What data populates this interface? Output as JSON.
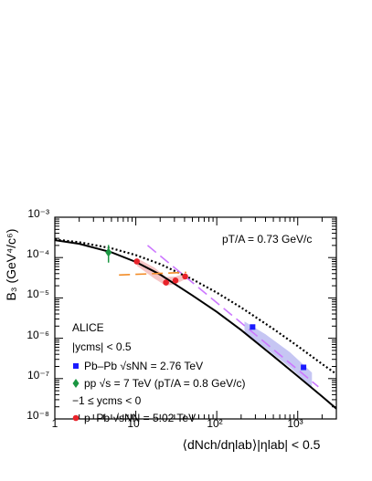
{
  "chart_data": {
    "type": "scatter",
    "xscale": "log",
    "yscale": "log",
    "xlim": [
      1,
      3000
    ],
    "ylim": [
      1e-08,
      0.001
    ],
    "x_tick_labels": [
      "1",
      "10",
      "10²",
      "10³"
    ],
    "y_tick_labels": [
      "10⁻⁸",
      "10⁻⁷",
      "10⁻⁶",
      "10⁻⁵",
      "10⁻⁴",
      "10⁻³"
    ],
    "ylabel": "B₃ (GeV⁴/c⁶)",
    "xlabel": "⟨dNch/dηlab⟩|ηlab| < 0.5",
    "annotation": "pT/A = 0.73 GeV/c",
    "legend": {
      "header": "ALICE",
      "rapidity": "|ycms| < 0.5",
      "pbpb": "Pb–Pb √sNN = 2.76 TeV",
      "pp": "pp √s = 7 TeV (pT/A = 0.8 GeV/c)",
      "ppb_range": "−1 ≤ ycms < 0",
      "ppb": "p–Pb √sNN = 5.02 TeV"
    },
    "series": [
      {
        "name": "Pb–Pb √sNN = 2.76 TeV",
        "color": "#1a1aff",
        "marker": "square",
        "x": [
          277,
          1180
        ],
        "y": [
          1.9e-06,
          1.9e-07
        ]
      },
      {
        "name": "pp √s = 7 TeV (pT/A = 0.8 GeV/c)",
        "color": "#1a9641",
        "marker": "diamond",
        "x": [
          4.6
        ],
        "y": [
          0.000135
        ],
        "yerr_up": [
          7e-05
        ],
        "yerr_down": [
          6e-05
        ]
      },
      {
        "name": "p–Pb √sNN = 5.02 TeV",
        "color": "#e8232a",
        "marker": "circle",
        "x": [
          10.3,
          23.6,
          30.9,
          40.7
        ],
        "y": [
          8e-05,
          2.4e-05,
          2.7e-05,
          3.4e-05
        ]
      }
    ],
    "curves": [
      {
        "style": "solid",
        "color": "#000000",
        "x": [
          1,
          2,
          5,
          10,
          20,
          50,
          100,
          200,
          500,
          1000,
          2000,
          3000
        ],
        "y": [
          0.00027,
          0.00022,
          0.000135,
          7.8e-05,
          3.8e-05,
          1.15e-05,
          4.5e-06,
          1.6e-06,
          3.6e-07,
          1.15e-07,
          3.6e-08,
          1.8e-08
        ]
      },
      {
        "style": "dotted",
        "color": "#000000",
        "x": [
          1,
          2,
          5,
          10,
          20,
          50,
          100,
          200,
          500,
          1000,
          2000,
          3000
        ],
        "y": [
          0.00028,
          0.00024,
          0.00017,
          0.000115,
          6.9e-05,
          2.9e-05,
          1.35e-05,
          5.8e-06,
          1.7e-06,
          6.4e-07,
          2.3e-07,
          1.3e-07
        ]
      },
      {
        "style": "dashed",
        "color": "#cc77ff",
        "x": [
          14,
          1800
        ],
        "y": [
          0.0002,
          6.3e-08
        ]
      },
      {
        "style": "dashed",
        "color": "#f28c28",
        "x": [
          6.2,
          42
        ],
        "y": [
          3.7e-05,
          4.3e-05
        ]
      }
    ],
    "bands": [
      {
        "color": "#b8b8f0",
        "x": [
          220,
          400,
          800,
          1500
        ],
        "ylow": [
          1.3e-06,
          5.7e-07,
          1.9e-07,
          6e-08
        ],
        "yhigh": [
          2.6e-06,
          1.25e-06,
          4.5e-07,
          1.4e-07
        ]
      },
      {
        "color": "#f4b6b6",
        "x": [
          10.3,
          17,
          23.6,
          30.9,
          40.7
        ],
        "ylow": [
          6.3e-05,
          3e-05,
          2e-05,
          2.2e-05,
          2.9e-05
        ],
        "yhigh": [
          9.7e-05,
          5.6e-05,
          3.3e-05,
          3.4e-05,
          4e-05
        ]
      }
    ]
  }
}
